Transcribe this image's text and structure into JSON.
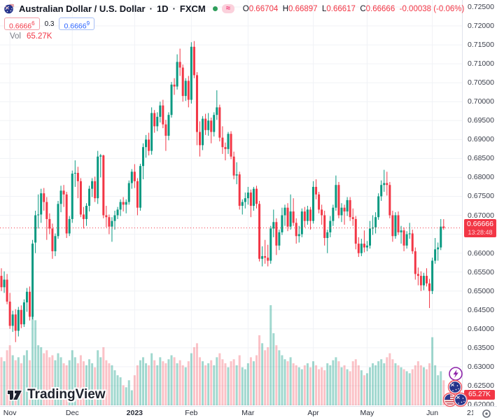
{
  "header": {
    "symbol": "Australian Dollar / U.S. Dollar",
    "separator": "·",
    "interval": "1D",
    "exchange": "FXCM",
    "ohlc": {
      "o_label": "O",
      "o": "0.66704",
      "h_label": "H",
      "h": "0.66897",
      "l_label": "L",
      "l": "0.66617",
      "c_label": "C",
      "c": "0.66666",
      "change": "-0.00038 (-0.06%)"
    },
    "bid": "0.6666",
    "bid_sup": "6",
    "spread": "0.3",
    "ask": "0.6666",
    "ask_sup": "9",
    "vol_label": "Vol",
    "vol_value": "65.27K"
  },
  "price_axis": {
    "ticks": [
      "0.72500",
      "0.72000",
      "0.71500",
      "0.71000",
      "0.70500",
      "0.70000",
      "0.69500",
      "0.69000",
      "0.68500",
      "0.68000",
      "0.67500",
      "0.67000",
      "0.66500",
      "0.66000",
      "0.65500",
      "0.65000",
      "0.64500",
      "0.64000",
      "0.63500",
      "0.63000",
      "0.62500",
      "0.62000"
    ],
    "current_price_label": "0.66666",
    "countdown": "13:28:48",
    "volume_label": "65.27K"
  },
  "time_axis": {
    "months": [
      {
        "label": "Nov",
        "index": 3
      },
      {
        "label": "Dec",
        "index": 25
      },
      {
        "label": "2023",
        "index": 47,
        "bold": true
      },
      {
        "label": "Feb",
        "index": 67
      },
      {
        "label": "Mar",
        "index": 87
      },
      {
        "label": "Apr",
        "index": 110
      },
      {
        "label": "May",
        "index": 129
      },
      {
        "label": "Jun",
        "index": 152
      }
    ],
    "partial_label": "21"
  },
  "watermark": "TradingView",
  "colors": {
    "up": "#089981",
    "down": "#f23645",
    "volume_up": "rgba(8,153,129,0.38)",
    "volume_down": "rgba(242,54,69,0.30)",
    "grid": "#f0f2f6",
    "price_line": "#f23645",
    "label_bg": "#f23645",
    "bid": "#f23645",
    "ask": "#2962ff"
  },
  "chart_data": {
    "type": "candlestick_with_volume",
    "title": "Australian Dollar / U.S. Dollar · 1D · FXCM",
    "price_range": [
      0.62,
      0.725
    ],
    "grid_step": 0.005,
    "current_price": 0.66666,
    "current_volume": "65.27K",
    "x_axis": "Nov 2022 – Jun 2023, daily",
    "candles_format": [
      "open",
      "high",
      "low",
      "close",
      "relative_volume_pct"
    ],
    "candles": [
      [
        0.654,
        0.656,
        0.65,
        0.651,
        48
      ],
      [
        0.651,
        0.6552,
        0.6495,
        0.653,
        44
      ],
      [
        0.653,
        0.6545,
        0.6465,
        0.6472,
        55
      ],
      [
        0.6472,
        0.6495,
        0.64,
        0.6408,
        60
      ],
      [
        0.6408,
        0.6448,
        0.6392,
        0.6438,
        50
      ],
      [
        0.6438,
        0.6452,
        0.6365,
        0.6395,
        45
      ],
      [
        0.6395,
        0.6458,
        0.638,
        0.645,
        48
      ],
      [
        0.645,
        0.6462,
        0.6402,
        0.6412,
        42
      ],
      [
        0.6412,
        0.6478,
        0.6405,
        0.647,
        50
      ],
      [
        0.647,
        0.6508,
        0.6445,
        0.6498,
        55
      ],
      [
        0.6498,
        0.6512,
        0.6422,
        0.6432,
        45
      ],
      [
        0.6432,
        0.6635,
        0.6425,
        0.6625,
        92
      ],
      [
        0.6628,
        0.6712,
        0.66,
        0.67,
        85
      ],
      [
        0.67,
        0.6755,
        0.6665,
        0.6702,
        60
      ],
      [
        0.6702,
        0.677,
        0.668,
        0.6758,
        58
      ],
      [
        0.6758,
        0.6772,
        0.6712,
        0.6735,
        52
      ],
      [
        0.6735,
        0.6748,
        0.6635,
        0.669,
        55
      ],
      [
        0.669,
        0.6705,
        0.665,
        0.6665,
        48
      ],
      [
        0.6665,
        0.6678,
        0.6585,
        0.6605,
        50
      ],
      [
        0.6605,
        0.6652,
        0.6592,
        0.6645,
        45
      ],
      [
        0.6645,
        0.6738,
        0.6638,
        0.673,
        52
      ],
      [
        0.673,
        0.6778,
        0.6708,
        0.6765,
        48
      ],
      [
        0.6765,
        0.678,
        0.6722,
        0.6755,
        42
      ],
      [
        0.6755,
        0.6762,
        0.664,
        0.6652,
        40
      ],
      [
        0.6652,
        0.6698,
        0.6645,
        0.669,
        45
      ],
      [
        0.669,
        0.6818,
        0.668,
        0.681,
        55
      ],
      [
        0.681,
        0.6845,
        0.6775,
        0.6812,
        48
      ],
      [
        0.6812,
        0.6828,
        0.6745,
        0.679,
        42
      ],
      [
        0.679,
        0.6798,
        0.6695,
        0.6702,
        50
      ],
      [
        0.6702,
        0.6722,
        0.6665,
        0.669,
        44
      ],
      [
        0.669,
        0.6732,
        0.6672,
        0.6725,
        40
      ],
      [
        0.6725,
        0.6778,
        0.671,
        0.677,
        46
      ],
      [
        0.677,
        0.6798,
        0.6748,
        0.679,
        42
      ],
      [
        0.679,
        0.6802,
        0.6735,
        0.6745,
        38
      ],
      [
        0.6745,
        0.687,
        0.673,
        0.6855,
        55
      ],
      [
        0.6855,
        0.6862,
        0.68,
        0.6858,
        48
      ],
      [
        0.6858,
        0.686,
        0.6692,
        0.67,
        58
      ],
      [
        0.67,
        0.6725,
        0.6668,
        0.6695,
        45
      ],
      [
        0.6695,
        0.6702,
        0.665,
        0.667,
        42
      ],
      [
        0.667,
        0.6695,
        0.663,
        0.6685,
        40
      ],
      [
        0.6685,
        0.6712,
        0.6662,
        0.67,
        35
      ],
      [
        0.67,
        0.6722,
        0.669,
        0.6715,
        30
      ],
      [
        0.6715,
        0.6742,
        0.6698,
        0.6735,
        28
      ],
      [
        0.6735,
        0.6748,
        0.671,
        0.6728,
        20
      ],
      [
        0.6728,
        0.6742,
        0.6705,
        0.6735,
        18
      ],
      [
        0.6735,
        0.6792,
        0.6728,
        0.6785,
        25
      ],
      [
        0.6785,
        0.6822,
        0.677,
        0.6815,
        15
      ],
      [
        0.6815,
        0.6835,
        0.6772,
        0.679,
        30
      ],
      [
        0.679,
        0.6798,
        0.67,
        0.672,
        40
      ],
      [
        0.672,
        0.6836,
        0.6712,
        0.683,
        45
      ],
      [
        0.683,
        0.689,
        0.6795,
        0.688,
        48
      ],
      [
        0.688,
        0.6912,
        0.6852,
        0.69,
        42
      ],
      [
        0.69,
        0.6918,
        0.6858,
        0.687,
        40
      ],
      [
        0.687,
        0.6985,
        0.686,
        0.697,
        52
      ],
      [
        0.697,
        0.6978,
        0.6918,
        0.6935,
        45
      ],
      [
        0.6935,
        0.6972,
        0.6922,
        0.696,
        40
      ],
      [
        0.696,
        0.7,
        0.6945,
        0.699,
        48
      ],
      [
        0.699,
        0.7005,
        0.693,
        0.694,
        44
      ],
      [
        0.694,
        0.6952,
        0.687,
        0.691,
        42
      ],
      [
        0.691,
        0.6972,
        0.6898,
        0.6965,
        46
      ],
      [
        0.6965,
        0.7052,
        0.6958,
        0.7045,
        50
      ],
      [
        0.7045,
        0.7062,
        0.7018,
        0.704,
        48
      ],
      [
        0.704,
        0.7125,
        0.7032,
        0.7105,
        42
      ],
      [
        0.7105,
        0.714,
        0.7068,
        0.709,
        45
      ],
      [
        0.709,
        0.7098,
        0.7,
        0.7015,
        40
      ],
      [
        0.7015,
        0.7062,
        0.7002,
        0.7055,
        38
      ],
      [
        0.7055,
        0.7068,
        0.6985,
        0.7005,
        44
      ],
      [
        0.7005,
        0.7157,
        0.6995,
        0.7145,
        52
      ],
      [
        0.7145,
        0.716,
        0.7062,
        0.707,
        58
      ],
      [
        0.707,
        0.7078,
        0.6885,
        0.692,
        62
      ],
      [
        0.692,
        0.6948,
        0.6855,
        0.6885,
        48
      ],
      [
        0.6885,
        0.6962,
        0.6872,
        0.6955,
        44
      ],
      [
        0.6955,
        0.6968,
        0.6912,
        0.6925,
        40
      ],
      [
        0.6925,
        0.697,
        0.691,
        0.695,
        42
      ],
      [
        0.695,
        0.6958,
        0.689,
        0.692,
        45
      ],
      [
        0.692,
        0.6972,
        0.6908,
        0.6965,
        40
      ],
      [
        0.6965,
        0.703,
        0.6952,
        0.6985,
        48
      ],
      [
        0.6985,
        0.6992,
        0.6895,
        0.6905,
        52
      ],
      [
        0.6905,
        0.6935,
        0.6862,
        0.688,
        46
      ],
      [
        0.688,
        0.6892,
        0.6845,
        0.6875,
        42
      ],
      [
        0.6875,
        0.692,
        0.6862,
        0.6915,
        38
      ],
      [
        0.6915,
        0.6922,
        0.6848,
        0.6855,
        44
      ],
      [
        0.6855,
        0.6868,
        0.6795,
        0.6805,
        46
      ],
      [
        0.6805,
        0.684,
        0.6782,
        0.6808,
        40
      ],
      [
        0.6808,
        0.6815,
        0.6715,
        0.6725,
        50
      ],
      [
        0.6725,
        0.6742,
        0.6702,
        0.6735,
        38
      ],
      [
        0.6735,
        0.676,
        0.6718,
        0.6745,
        36
      ],
      [
        0.6745,
        0.6775,
        0.6728,
        0.676,
        42
      ],
      [
        0.676,
        0.6768,
        0.6695,
        0.6725,
        48
      ],
      [
        0.6725,
        0.6775,
        0.6712,
        0.677,
        44
      ],
      [
        0.677,
        0.6778,
        0.6718,
        0.673,
        50
      ],
      [
        0.673,
        0.6738,
        0.6578,
        0.6585,
        70
      ],
      [
        0.6585,
        0.6618,
        0.6565,
        0.6592,
        62
      ],
      [
        0.6592,
        0.6635,
        0.6572,
        0.6588,
        55
      ],
      [
        0.6588,
        0.6622,
        0.6565,
        0.658,
        58
      ],
      [
        0.658,
        0.6672,
        0.6572,
        0.6665,
        100
      ],
      [
        0.6665,
        0.6715,
        0.6642,
        0.6682,
        72
      ],
      [
        0.6682,
        0.6692,
        0.6595,
        0.662,
        60
      ],
      [
        0.662,
        0.6662,
        0.6608,
        0.6655,
        55
      ],
      [
        0.6655,
        0.672,
        0.6648,
        0.67,
        50
      ],
      [
        0.67,
        0.6728,
        0.6672,
        0.672,
        46
      ],
      [
        0.672,
        0.6732,
        0.6658,
        0.667,
        44
      ],
      [
        0.667,
        0.6755,
        0.6662,
        0.671,
        48
      ],
      [
        0.671,
        0.6745,
        0.6672,
        0.668,
        42
      ],
      [
        0.668,
        0.6692,
        0.6625,
        0.6645,
        40
      ],
      [
        0.6645,
        0.6672,
        0.6628,
        0.665,
        38
      ],
      [
        0.665,
        0.6718,
        0.6642,
        0.671,
        36
      ],
      [
        0.671,
        0.6722,
        0.6668,
        0.6685,
        40
      ],
      [
        0.6685,
        0.6725,
        0.6675,
        0.6715,
        42
      ],
      [
        0.6715,
        0.6722,
        0.6662,
        0.6685,
        38
      ],
      [
        0.6685,
        0.679,
        0.6678,
        0.6775,
        44
      ],
      [
        0.6775,
        0.6795,
        0.6742,
        0.6755,
        40
      ],
      [
        0.6755,
        0.6762,
        0.6705,
        0.6715,
        36
      ],
      [
        0.6715,
        0.6728,
        0.6675,
        0.67,
        38
      ],
      [
        0.67,
        0.6712,
        0.662,
        0.664,
        35
      ],
      [
        0.664,
        0.6662,
        0.66,
        0.6655,
        42
      ],
      [
        0.6655,
        0.6698,
        0.6642,
        0.6685,
        40
      ],
      [
        0.6685,
        0.6728,
        0.6672,
        0.672,
        45
      ],
      [
        0.672,
        0.6805,
        0.6712,
        0.678,
        48
      ],
      [
        0.678,
        0.6788,
        0.6692,
        0.67,
        44
      ],
      [
        0.67,
        0.6732,
        0.6682,
        0.672,
        38
      ],
      [
        0.672,
        0.6728,
        0.6675,
        0.671,
        40
      ],
      [
        0.671,
        0.6748,
        0.6698,
        0.674,
        36
      ],
      [
        0.674,
        0.6748,
        0.6685,
        0.6695,
        34
      ],
      [
        0.6695,
        0.6718,
        0.6672,
        0.669,
        44
      ],
      [
        0.669,
        0.6698,
        0.661,
        0.6625,
        46
      ],
      [
        0.6625,
        0.6642,
        0.659,
        0.66,
        40
      ],
      [
        0.66,
        0.6638,
        0.6592,
        0.6625,
        35
      ],
      [
        0.6625,
        0.666,
        0.6602,
        0.6615,
        30
      ],
      [
        0.6615,
        0.6632,
        0.6605,
        0.662,
        32
      ],
      [
        0.662,
        0.6685,
        0.6612,
        0.6665,
        38
      ],
      [
        0.6665,
        0.67,
        0.6648,
        0.6668,
        42
      ],
      [
        0.6668,
        0.6708,
        0.6652,
        0.6695,
        40
      ],
      [
        0.6695,
        0.6758,
        0.6688,
        0.675,
        44
      ],
      [
        0.675,
        0.6792,
        0.6738,
        0.678,
        46
      ],
      [
        0.678,
        0.682,
        0.6762,
        0.6785,
        42
      ],
      [
        0.6785,
        0.6815,
        0.6752,
        0.678,
        48
      ],
      [
        0.678,
        0.6788,
        0.6692,
        0.67,
        52
      ],
      [
        0.67,
        0.6712,
        0.663,
        0.6645,
        46
      ],
      [
        0.6645,
        0.6708,
        0.6638,
        0.67,
        42
      ],
      [
        0.67,
        0.671,
        0.6648,
        0.6655,
        40
      ],
      [
        0.6655,
        0.6672,
        0.6625,
        0.666,
        38
      ],
      [
        0.666,
        0.6668,
        0.6605,
        0.662,
        36
      ],
      [
        0.662,
        0.6658,
        0.6612,
        0.665,
        34
      ],
      [
        0.665,
        0.668,
        0.6638,
        0.6652,
        32
      ],
      [
        0.6652,
        0.6662,
        0.6598,
        0.6605,
        36
      ],
      [
        0.6605,
        0.6615,
        0.653,
        0.6545,
        40
      ],
      [
        0.6545,
        0.6562,
        0.6515,
        0.654,
        44
      ],
      [
        0.654,
        0.6552,
        0.65,
        0.6515,
        40
      ],
      [
        0.6515,
        0.6548,
        0.6502,
        0.654,
        38
      ],
      [
        0.654,
        0.656,
        0.6512,
        0.652,
        36
      ],
      [
        0.652,
        0.6532,
        0.6455,
        0.65,
        42
      ],
      [
        0.65,
        0.6588,
        0.6492,
        0.658,
        68
      ],
      [
        0.658,
        0.664,
        0.6572,
        0.661,
        40
      ],
      [
        0.661,
        0.6628,
        0.658,
        0.6615,
        30
      ],
      [
        0.6615,
        0.669,
        0.6608,
        0.667,
        34
      ],
      [
        0.66704,
        0.66897,
        0.66617,
        0.66666,
        25
      ]
    ]
  }
}
